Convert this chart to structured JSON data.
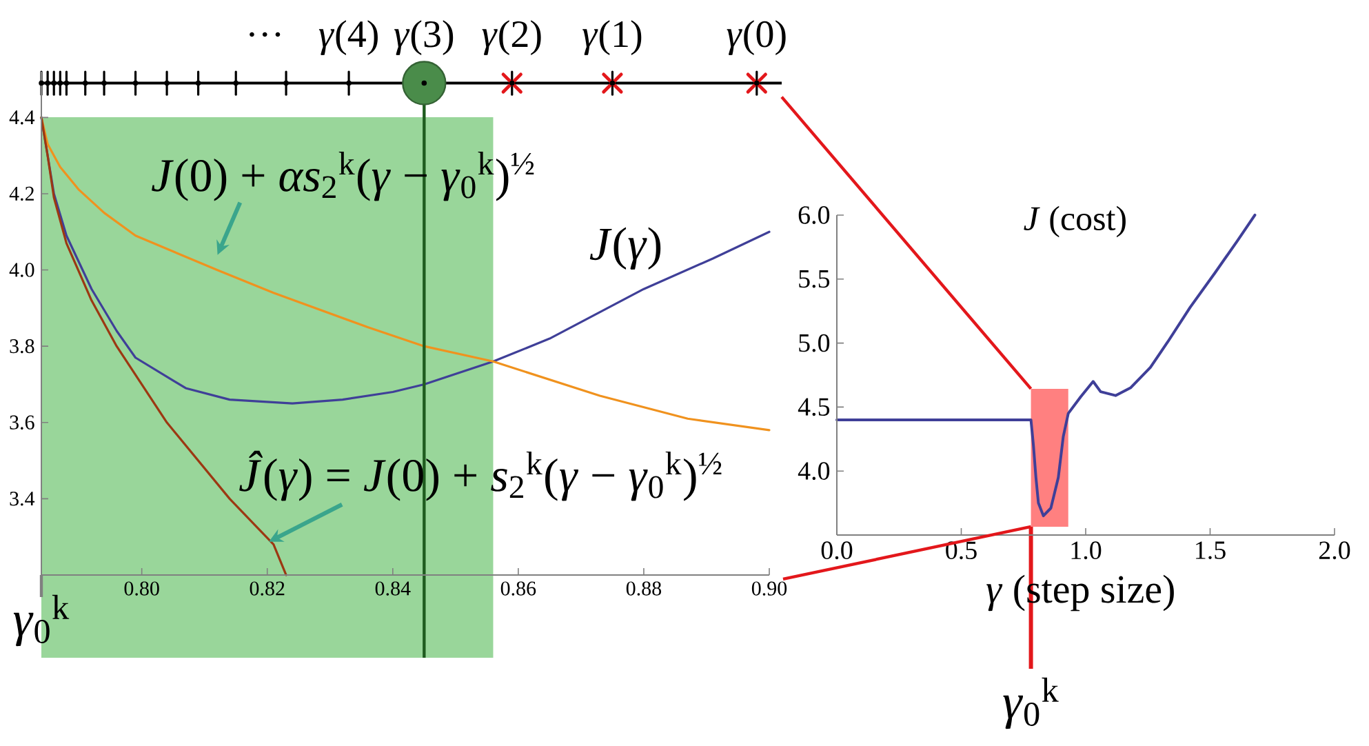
{
  "chart_data": [
    {
      "type": "line",
      "xlim": [
        0.784,
        0.9
      ],
      "ylim": [
        3.2,
        4.52
      ],
      "xticks": [
        {
          "value": 0.8,
          "label": "0.80"
        },
        {
          "value": 0.82,
          "label": "0.82"
        },
        {
          "value": 0.84,
          "label": "0.84"
        },
        {
          "value": 0.86,
          "label": "0.86"
        },
        {
          "value": 0.88,
          "label": "0.88"
        },
        {
          "value": 0.9,
          "label": "0.90"
        }
      ],
      "yticks": [
        3.4,
        3.6,
        3.8,
        {
          "value": 4.0,
          "label": "4.0"
        },
        4.2,
        4.4
      ],
      "bands": [
        {
          "axis": "x",
          "from": 0.784,
          "to": 0.856,
          "label": "*γ*$_{0}$$^{k}$",
          "color": "#99d69a"
        }
      ],
      "ref_lines": [
        {
          "axis": "x",
          "value": 0.845,
          "color": "#1f5c1f"
        },
        {
          "axis": "y",
          "value": 4.49,
          "color": "#000000"
        }
      ],
      "annotations": [
        "…",
        {
          "text": "*γ*(4)",
          "x": 0.833,
          "y": 4.49
        },
        {
          "text": "*γ*(3)",
          "x": 0.845,
          "y": 4.49
        },
        {
          "text": "*γ*(2)",
          "x": 0.859,
          "y": 4.49
        },
        {
          "text": "*γ*(1)",
          "x": 0.875,
          "y": 4.49
        },
        {
          "text": "*γ*(0)",
          "x": 0.898,
          "y": 4.49
        }
      ],
      "series": [
        {
          "name": "*J*(*γ*)",
          "color": "#3f3f98",
          "x": [
            0.784,
            0.786,
            0.788,
            0.792,
            0.796,
            0.799,
            0.807,
            0.814,
            0.824,
            0.832,
            0.84,
            0.845,
            0.856,
            0.865,
            0.88,
            0.891,
            0.9
          ],
          "values": [
            4.4,
            4.2,
            4.09,
            3.95,
            3.84,
            3.77,
            3.69,
            3.66,
            3.65,
            3.66,
            3.68,
            3.7,
            3.76,
            3.82,
            3.95,
            4.03,
            4.1
          ]
        },
        {
          "name": "*J*(0) + *αs*$_{2}$$^{k}$(*γ* − *γ*$_{0}$$^{k}$)$^{½}$",
          "color": "#f0921e",
          "x": [
            0.784,
            0.785,
            0.787,
            0.79,
            0.794,
            0.799,
            0.812,
            0.821,
            0.836,
            0.845,
            0.856,
            0.873,
            0.887,
            0.9
          ],
          "values": [
            4.4,
            4.33,
            4.27,
            4.21,
            4.15,
            4.09,
            4.0,
            3.94,
            3.85,
            3.8,
            3.76,
            3.67,
            3.61,
            3.58
          ]
        },
        {
          "name": "*Ĵ*(*γ*) = *J*(0) + *s*$_{2}$$^{k}$(*γ* − *γ*$_{0}$$^{k}$)$^{½}$",
          "color": "#9c3812",
          "x": [
            0.784,
            0.785,
            0.786,
            0.788,
            0.792,
            0.796,
            0.804,
            0.814,
            0.821,
            0.823
          ],
          "values": [
            4.4,
            4.3,
            4.19,
            4.07,
            3.92,
            3.8,
            3.6,
            3.4,
            3.28,
            3.2
          ]
        },
        {
          "type": "scatter",
          "marker": "cross",
          "color": "#e3171b",
          "x": [
            0.859,
            0.875,
            0.898
          ],
          "values": [
            4.49,
            4.49,
            4.49
          ]
        },
        {
          "type": "scatter",
          "marker": "circle",
          "color": "#4a8c4a",
          "x": [
            0.845
          ],
          "values": [
            4.49
          ]
        },
        {
          "type": "scatter",
          "marker": "circle",
          "color": "#000000",
          "x": [
            0.784,
            0.785,
            0.786,
            0.787,
            0.788,
            0.791,
            0.794,
            0.799,
            0.804,
            0.809,
            0.815,
            0.823,
            0.833,
            0.845,
            0.859,
            0.875,
            0.898
          ],
          "values": [
            4.49,
            4.49,
            4.49,
            4.49,
            4.49,
            4.49,
            4.49,
            4.49,
            4.49,
            4.49,
            4.49,
            4.49,
            4.49,
            4.49,
            4.49,
            4.49,
            4.49
          ],
          "errors": [
            0.03,
            0.03,
            0.03,
            0.03,
            0.03,
            0.03,
            0.03,
            0.03,
            0.03,
            0.03,
            0.03,
            0.03,
            0.03,
            0.03,
            0.03,
            0.03,
            0.03
          ]
        }
      ]
    },
    {
      "type": "line",
      "title": "*J* (cost)",
      "xlabel": "*γ* (step size)",
      "xlim": [
        0,
        2
      ],
      "ylim": [
        3.5,
        6.0
      ],
      "xticks": [
        {
          "value": 0,
          "label": "0.0"
        },
        0.5,
        {
          "value": 1,
          "label": "1.0"
        },
        1.5,
        {
          "value": 2,
          "label": "2.0"
        }
      ],
      "yticks": [
        {
          "value": 4,
          "label": "4.0"
        },
        4.5,
        {
          "value": 5,
          "label": "5.0"
        },
        5.5,
        {
          "value": 6,
          "label": "6.0"
        }
      ],
      "bands": [
        {
          "axis": "x",
          "from": 0.78,
          "to": 0.93,
          "label": "*γ*$_{0}$$^{k}$",
          "color": "#ff8080"
        }
      ],
      "series": [
        {
          "color": "#3f3f98",
          "x": [
            0.0,
            0.78,
            0.79,
            0.8,
            0.81,
            0.83,
            0.86,
            0.89,
            0.91,
            0.93,
            0.98,
            1.03,
            1.06,
            1.12,
            1.18,
            1.26,
            1.33,
            1.42,
            1.52,
            1.61,
            1.68
          ],
          "values": [
            4.4,
            4.4,
            4.2,
            3.95,
            3.75,
            3.65,
            3.71,
            3.95,
            4.27,
            4.45,
            4.58,
            4.7,
            4.62,
            4.59,
            4.65,
            4.81,
            5.01,
            5.28,
            5.55,
            5.8,
            6.0
          ]
        }
      ]
    }
  ]
}
